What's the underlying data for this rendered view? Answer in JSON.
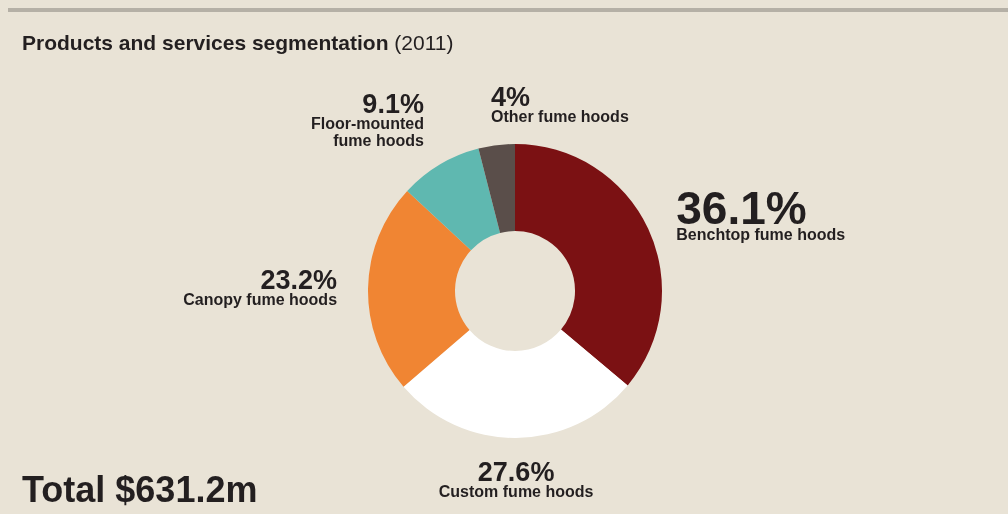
{
  "chart_data": {
    "type": "donut",
    "title": "Products and services segmentation (2011)",
    "categories": [
      "Benchtop fume hoods",
      "Custom fume hoods",
      "Canopy fume hoods",
      "Floor-mounted fume hoods",
      "Other fume hoods"
    ],
    "values": [
      36.1,
      27.6,
      23.2,
      9.1,
      4
    ],
    "value_labels": [
      "36.1%",
      "27.6%",
      "23.2%",
      "9.1%",
      "4%"
    ],
    "colors": [
      "#7b1113",
      "#ffffff",
      "#f08533",
      "#5fb8b0",
      "#5a4e4a"
    ],
    "annotations": [
      "Total $631.2m"
    ]
  }
}
